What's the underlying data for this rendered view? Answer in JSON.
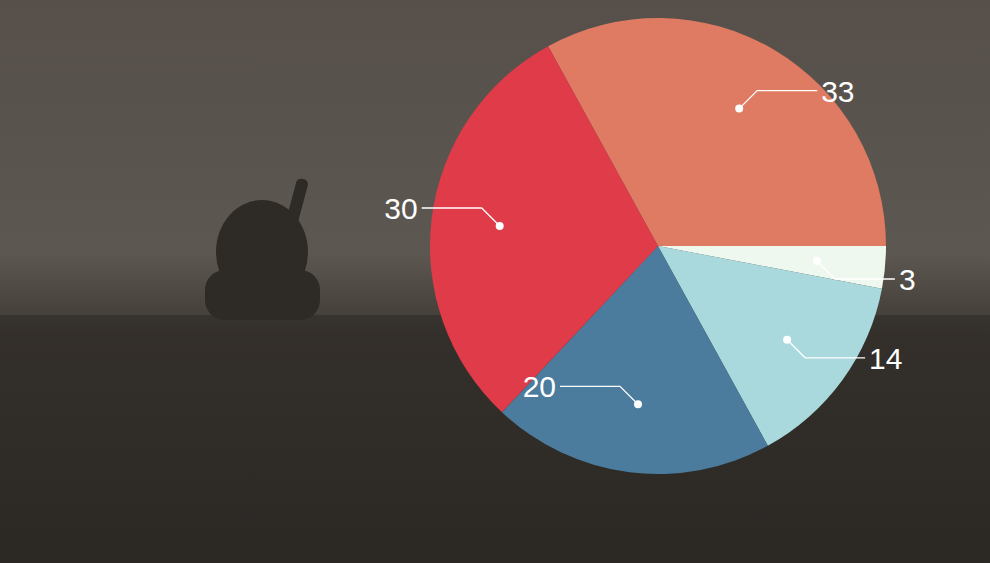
{
  "chart_data": {
    "type": "pie",
    "values": [
      33,
      3,
      14,
      20,
      30
    ],
    "colors": [
      "#df7b63",
      "#eff8ee",
      "#a9d9dd",
      "#4b7c9e",
      "#e03b49"
    ],
    "data_labels": true
  }
}
